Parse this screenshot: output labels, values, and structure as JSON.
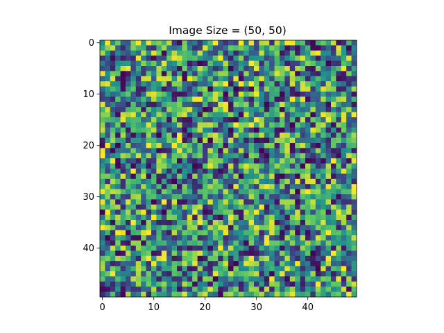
{
  "chart_data": {
    "type": "heatmap",
    "title": "Image Size = (50, 50)",
    "xlabel": "",
    "ylabel": "",
    "rows": 50,
    "cols": 50,
    "colormap": "viridis",
    "value_range": [
      0,
      1
    ],
    "x_ticks": [
      0,
      10,
      20,
      30,
      40
    ],
    "y_ticks": [
      0,
      10,
      20,
      30,
      40
    ],
    "x_tick_labels": [
      "0",
      "10",
      "20",
      "30",
      "40"
    ],
    "y_tick_labels": [
      "0",
      "10",
      "20",
      "30",
      "40"
    ],
    "content": "uniform random noise; individual cell values not legible",
    "colormap_stops": [
      "#440154",
      "#3b528b",
      "#21918c",
      "#5ec962",
      "#fde725"
    ],
    "frame_color": "#000000"
  }
}
